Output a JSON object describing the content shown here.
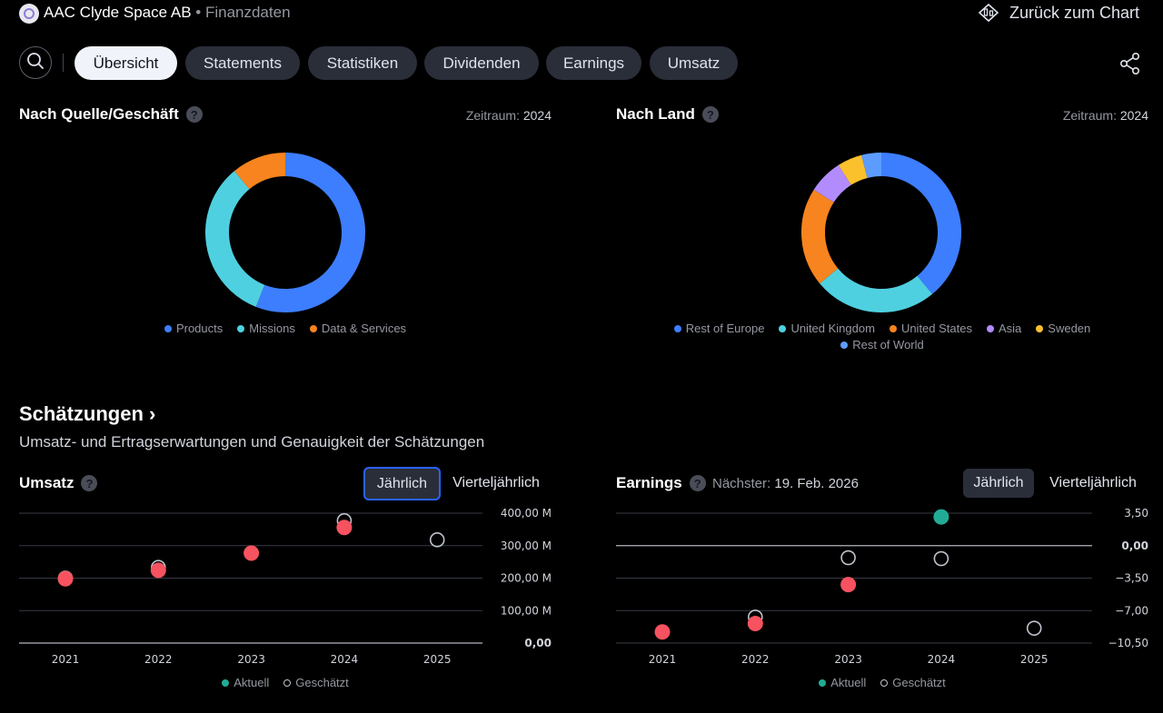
{
  "header": {
    "company": "AAC Clyde Space AB",
    "separator": "•",
    "section": "Finanzdaten",
    "back_label": "Zurück zum Chart"
  },
  "tabs": [
    {
      "label": "Übersicht",
      "active": true
    },
    {
      "label": "Statements",
      "active": false
    },
    {
      "label": "Statistiken",
      "active": false
    },
    {
      "label": "Dividenden",
      "active": false
    },
    {
      "label": "Earnings",
      "active": false
    },
    {
      "label": "Umsatz",
      "active": false
    }
  ],
  "icons": {
    "search": "search-icon",
    "share": "share-icon",
    "back": "chart-candles-icon",
    "help": "question-icon"
  },
  "colors": {
    "blue": "#3d7eff",
    "cyan": "#4fd0e0",
    "orange": "#f7841e",
    "purple": "#b28cff",
    "yellow": "#fbc12d",
    "lightblue": "#5c9cff",
    "actual_red": "#f7525f",
    "actual_green": "#22ab94"
  },
  "source_panel": {
    "title": "Nach Quelle/Geschäft",
    "period_label": "Zeitraum:",
    "period_value": "2024",
    "legend": [
      "Products",
      "Missions",
      "Data & Services"
    ]
  },
  "country_panel": {
    "title": "Nach Land",
    "period_label": "Zeitraum:",
    "period_value": "2024",
    "legend": [
      "Rest of Europe",
      "United Kingdom",
      "United States",
      "Asia",
      "Sweden",
      "Rest of World"
    ]
  },
  "estimates": {
    "title": "Schätzungen ›",
    "subtitle": "Umsatz- und Ertragserwartungen und Genauigkeit der Schätzungen"
  },
  "revenue_panel": {
    "title": "Umsatz",
    "toggle_annual": "Jährlich",
    "toggle_quarterly": "Vierteljährlich",
    "legend_actual": "Aktuell",
    "legend_estimate": "Geschätzt"
  },
  "earnings_panel": {
    "title": "Earnings",
    "next_label": "Nächster:",
    "next_value": "19. Feb. 2026",
    "toggle_annual": "Jährlich",
    "toggle_quarterly": "Vierteljährlich",
    "legend_actual": "Aktuell",
    "legend_estimate": "Geschätzt"
  },
  "chart_data": [
    {
      "type": "pie",
      "title": "Nach Quelle/Geschäft",
      "labels": [
        "Products",
        "Missions",
        "Data & Services"
      ],
      "values": [
        56,
        33,
        11
      ],
      "colors": [
        "#3d7eff",
        "#4fd0e0",
        "#f7841e"
      ]
    },
    {
      "type": "pie",
      "title": "Nach Land",
      "labels": [
        "Rest of Europe",
        "United Kingdom",
        "United States",
        "Asia",
        "Sweden",
        "Rest of World"
      ],
      "values": [
        39,
        25,
        20,
        7,
        5,
        4
      ],
      "colors": [
        "#3d7eff",
        "#4fd0e0",
        "#f7841e",
        "#b28cff",
        "#fbc12d",
        "#5c9cff"
      ]
    },
    {
      "type": "scatter",
      "title": "Umsatz",
      "categories": [
        "2021",
        "2022",
        "2023",
        "2024",
        "2025"
      ],
      "y_ticks": [
        "400,00 M",
        "300,00 M",
        "200,00 M",
        "100,00 M",
        "0,00"
      ],
      "ylim": [
        0,
        400
      ],
      "series": [
        {
          "name": "Aktuell",
          "values": [
            198,
            224,
            277,
            356,
            null
          ]
        },
        {
          "name": "Geschätzt",
          "values": [
            200,
            233,
            null,
            377,
            318
          ]
        }
      ]
    },
    {
      "type": "scatter",
      "title": "Earnings",
      "categories": [
        "2021",
        "2022",
        "2023",
        "2024",
        "2025"
      ],
      "y_ticks": [
        "3,50",
        "0,00",
        "−3,50",
        "−7,00",
        "−10,50"
      ],
      "ylim": [
        -10.5,
        3.5
      ],
      "series": [
        {
          "name": "Aktuell",
          "values": [
            -9.3,
            -8.4,
            -4.2,
            3.1,
            null
          ],
          "colors": [
            "#f7525f",
            "#f7525f",
            "#f7525f",
            "#22ab94",
            null
          ]
        },
        {
          "name": "Geschätzt",
          "values": [
            null,
            -7.7,
            -1.3,
            -1.4,
            -8.9
          ]
        }
      ]
    }
  ]
}
